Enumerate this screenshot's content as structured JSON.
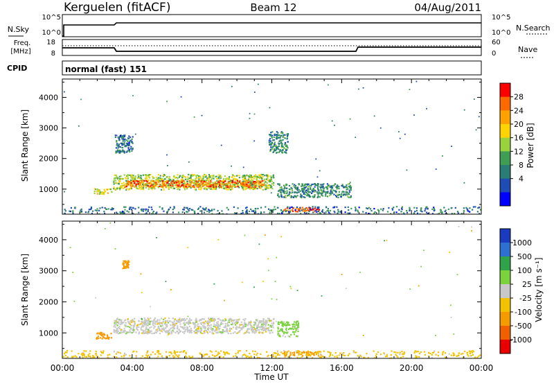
{
  "header": {
    "station": "Kerguelen (fitACF)",
    "beam": "Beam 12",
    "date": "04/Aug/2011"
  },
  "top_panels": {
    "nsky_label": "N.Sky",
    "nsearch_label": "N.Search",
    "count_ticks": [
      "10^5",
      "10^0"
    ],
    "freq_label": "Freq.",
    "freq_unit": "[MHz]",
    "freq_ticks": [
      "18",
      "8"
    ],
    "nave_label": "Nave",
    "nave_ticks": [
      "60",
      "0"
    ],
    "cpid_label": "CPID",
    "cpid_value": "normal (fast) 151"
  },
  "power_scale": {
    "title": "Power [dB]",
    "ticks": [
      "28",
      "24",
      "20",
      "16",
      "12",
      "8",
      "4"
    ],
    "colors": [
      "#ff0000",
      "#ff6a00",
      "#ffa200",
      "#ffd400",
      "#9ad23c",
      "#3f9d54",
      "#2a7d76",
      "#1f4bb5",
      "#0000ff"
    ]
  },
  "velocity_scale": {
    "title": "Velocity [m s⁻¹]",
    "ticks": [
      "1000",
      "500",
      "100",
      "25",
      "-25",
      "-100",
      "-500",
      "-1000"
    ],
    "colors": [
      "#1a3bbf",
      "#2e6fd2",
      "#2fa34a",
      "#7ad23c",
      "#c8c8c8",
      "#f2c200",
      "#f59b00",
      "#f06000",
      "#e80000"
    ]
  },
  "axes": {
    "ylabel": "Slant Range [km]",
    "yticks": [
      "4000",
      "3000",
      "2000",
      "1000"
    ],
    "xlabel": "Time UT",
    "xticks": [
      "00:00",
      "04:00",
      "08:00",
      "12:00",
      "16:00",
      "20:00",
      "00:00"
    ]
  },
  "chart_data": [
    {
      "type": "heatmap",
      "panel": "power",
      "x_unit": "hours UT",
      "y_unit": "km",
      "xlim": [
        0,
        24
      ],
      "ylim": [
        180,
        4600
      ],
      "regions": [
        {
          "x": [
            2.9,
            12.1
          ],
          "y": [
            1000,
            1500
          ],
          "value_db": 14
        },
        {
          "x": [
            3.5,
            11.5
          ],
          "y": [
            1080,
            1300
          ],
          "value_db": 24
        },
        {
          "x": [
            12.6,
            14.8
          ],
          "y": [
            280,
            420
          ],
          "value_db": 26
        },
        {
          "x": [
            12.3,
            16.5
          ],
          "y": [
            750,
            1200
          ],
          "value_db": 8
        },
        {
          "x": [
            1.8,
            2.8
          ],
          "y": [
            830,
            1040
          ],
          "value_db": 16
        },
        {
          "x": [
            3.0,
            4.0
          ],
          "y": [
            2200,
            2800
          ],
          "value_db": 6
        },
        {
          "x": [
            11.8,
            12.9
          ],
          "y": [
            2200,
            2900
          ],
          "value_db": 8
        },
        {
          "x": [
            0,
            24
          ],
          "y": [
            180,
            450
          ],
          "value_db": 6
        }
      ]
    },
    {
      "type": "heatmap",
      "panel": "velocity",
      "x_unit": "hours UT",
      "y_unit": "km",
      "xlim": [
        0,
        24
      ],
      "ylim": [
        180,
        4600
      ],
      "regions": [
        {
          "x": [
            2.9,
            12.1
          ],
          "y": [
            1000,
            1500
          ],
          "value_ms": 0
        },
        {
          "x": [
            12.6,
            14.8
          ],
          "y": [
            280,
            420
          ],
          "value_ms": -150
        },
        {
          "x": [
            12.3,
            13.5
          ],
          "y": [
            900,
            1400
          ],
          "value_ms": 50
        },
        {
          "x": [
            1.8,
            2.8
          ],
          "y": [
            830,
            1040
          ],
          "value_ms": -200
        },
        {
          "x": [
            3.4,
            3.8
          ],
          "y": [
            3100,
            3350
          ],
          "value_ms": -300
        },
        {
          "x": [
            0,
            24
          ],
          "y": [
            180,
            450
          ],
          "value_ms": -50
        }
      ]
    }
  ]
}
